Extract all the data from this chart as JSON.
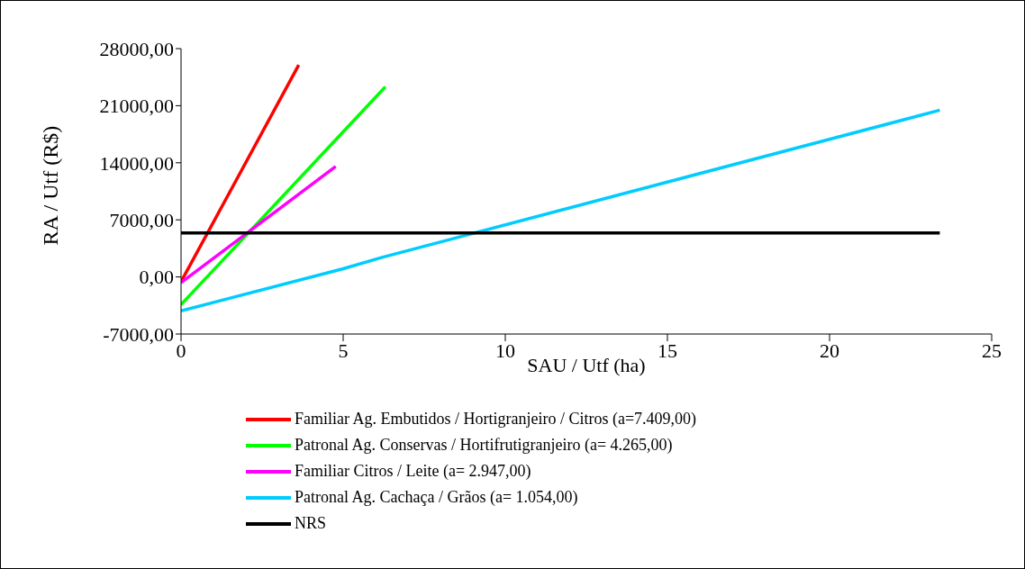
{
  "chart_data": {
    "type": "line",
    "xlabel": "SAU / Utf (ha)",
    "ylabel": "RA / Utf (R$)",
    "xlim": [
      0,
      25
    ],
    "xticks": [
      0,
      5,
      10,
      15,
      20,
      25
    ],
    "ylim": [
      -7000,
      28000
    ],
    "yticks": [
      {
        "value": -7000,
        "label": "-7000,00"
      },
      {
        "value": 0,
        "label": "0,00"
      },
      {
        "value": 7000,
        "label": "7000,00"
      },
      {
        "value": 14000,
        "label": "14000,00"
      },
      {
        "value": 21000,
        "label": "21000,00"
      },
      {
        "value": 28000,
        "label": "28000,00"
      }
    ],
    "legend": "bottom",
    "grid": false,
    "marker": "none",
    "line_style": "solid",
    "series": [
      {
        "name": "Familiar Ag. Embutidos / Hortigranjeiro / Citros (a=7.409,00)",
        "color": "#ff0000",
        "x": [
          0,
          3.63
        ],
        "values": [
          -600,
          26000
        ]
      },
      {
        "name": "Patronal Ag. Conservas / Hortifrutigranjeiro (a= 4.265,00)",
        "color": "#00ff00",
        "x": [
          0,
          6.3
        ],
        "values": [
          -3400,
          23300
        ]
      },
      {
        "name": "Familiar Citros / Leite (a= 2.947,00)",
        "color": "#ff00ff",
        "x": [
          0,
          4.77
        ],
        "values": [
          -700,
          13550
        ]
      },
      {
        "name": "Patronal Ag. Cachaça / Grãos (a= 1.054,00)",
        "color": "#00ccff",
        "x": [
          0,
          5,
          6.2,
          23.4
        ],
        "values": [
          -4150,
          1000,
          2400,
          20450
        ]
      },
      {
        "name": "NRS",
        "color": "#000000",
        "x": [
          0,
          23.4
        ],
        "values": [
          5400,
          5400
        ]
      }
    ]
  }
}
